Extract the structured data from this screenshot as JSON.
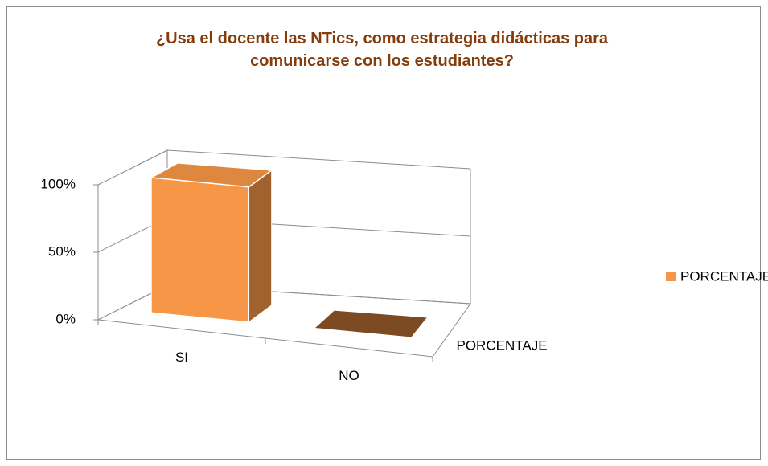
{
  "chart_data": {
    "type": "bar3d",
    "title": "¿Usa el docente las NTics, como estrategia didácticas para comunicarse con los estudiantes?",
    "categories": [
      "SI",
      "NO"
    ],
    "series": [
      {
        "name": "PORCENTAJE",
        "color": "#f79646",
        "values": [
          100,
          0
        ]
      }
    ],
    "ylim": [
      0,
      100
    ],
    "yticks": [
      {
        "value": 0,
        "label": "0%"
      },
      {
        "value": 50,
        "label": "50%"
      },
      {
        "value": 100,
        "label": "100%"
      }
    ],
    "grid": true,
    "legend": "right"
  }
}
